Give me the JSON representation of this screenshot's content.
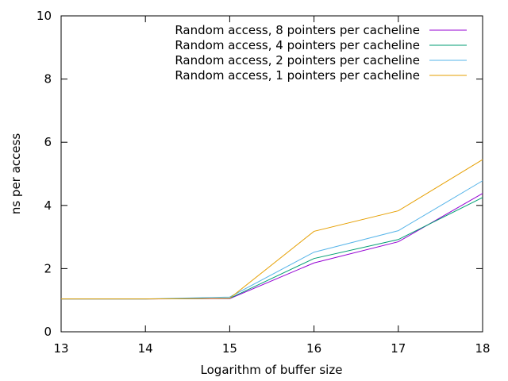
{
  "chart_data": {
    "type": "line",
    "title": "",
    "xlabel": "Logarithm of buffer size",
    "ylabel": "ns per access",
    "xlim": [
      13,
      18
    ],
    "ylim": [
      0,
      10
    ],
    "xticks": [
      13,
      14,
      15,
      16,
      17,
      18
    ],
    "yticks": [
      0,
      2,
      4,
      6,
      8,
      10
    ],
    "grid": false,
    "legend_position": "top-right",
    "x": [
      13,
      14,
      15,
      16,
      17,
      18
    ],
    "series": [
      {
        "name": "Random access, 8 pointers per cacheline",
        "color": "#9400d3",
        "values": [
          1.04,
          1.04,
          1.05,
          2.18,
          2.85,
          4.38
        ]
      },
      {
        "name": "Random access, 4 pointers per cacheline",
        "color": "#009e73",
        "values": [
          1.04,
          1.04,
          1.06,
          2.32,
          2.92,
          4.25
        ]
      },
      {
        "name": "Random access, 2 pointers per cacheline",
        "color": "#56b4e9",
        "values": [
          1.04,
          1.04,
          1.1,
          2.52,
          3.2,
          4.78
        ]
      },
      {
        "name": "Random access, 1 pointers per cacheline",
        "color": "#e69f00",
        "values": [
          1.04,
          1.04,
          1.06,
          3.18,
          3.83,
          5.45
        ]
      }
    ]
  }
}
